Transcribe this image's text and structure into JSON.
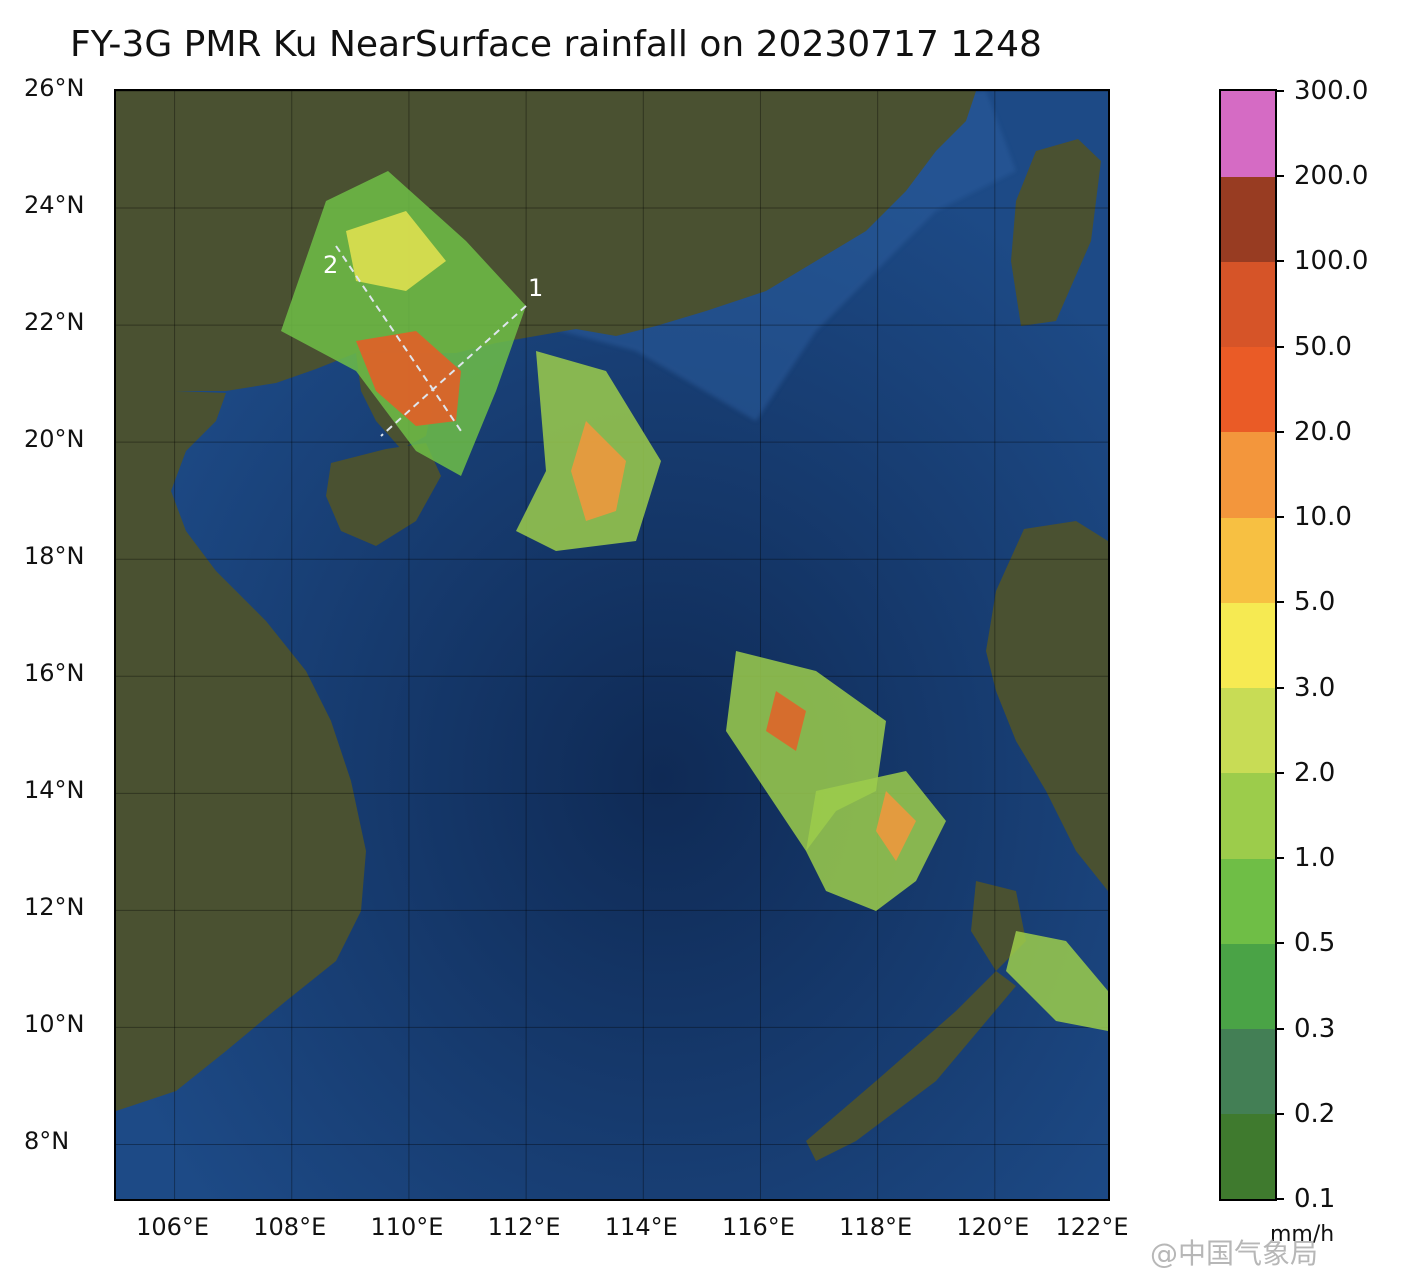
{
  "title": "FY-3G PMR Ku NearSurface rainfall on 20230717 1248",
  "map": {
    "lat_range": [
      7,
      26
    ],
    "lon_range": [
      105,
      122
    ],
    "lat_ticks": [
      {
        "value": 26,
        "label": "26°N"
      },
      {
        "value": 24,
        "label": "24°N"
      },
      {
        "value": 22,
        "label": "22°N"
      },
      {
        "value": 20,
        "label": "20°N"
      },
      {
        "value": 18,
        "label": "18°N"
      },
      {
        "value": 16,
        "label": "16°N"
      },
      {
        "value": 14,
        "label": "14°N"
      },
      {
        "value": 12,
        "label": "12°N"
      },
      {
        "value": 10,
        "label": "10°N"
      },
      {
        "value": 8,
        "label": "8°N"
      }
    ],
    "lon_ticks": [
      {
        "value": 106,
        "label": "106°E"
      },
      {
        "value": 108,
        "label": "108°E"
      },
      {
        "value": 110,
        "label": "110°E"
      },
      {
        "value": 112,
        "label": "112°E"
      },
      {
        "value": 114,
        "label": "114°E"
      },
      {
        "value": 116,
        "label": "116°E"
      },
      {
        "value": 118,
        "label": "118°E"
      },
      {
        "value": 120,
        "label": "120°E"
      },
      {
        "value": 122,
        "label": "122°E"
      }
    ],
    "cross_section_labels": [
      "1",
      "2"
    ],
    "colors": {
      "ocean": "#1d4a86",
      "deep_ocean": "#0f2a55",
      "land": "#4a5131"
    }
  },
  "colorbar": {
    "unit": "mm/h",
    "levels": [
      "0.1",
      "0.2",
      "0.3",
      "0.5",
      "1.0",
      "2.0",
      "3.0",
      "5.0",
      "10.0",
      "20.0",
      "50.0",
      "100.0",
      "200.0",
      "300.0"
    ],
    "colors": [
      "#3f7a2e",
      "#437f55",
      "#4aa346",
      "#6fbe46",
      "#9ccc4b",
      "#c8dc55",
      "#f6ea52",
      "#f7c042",
      "#f3963c",
      "#ea5b26",
      "#d65428",
      "#983c22",
      "#d56bc4",
      "#9e4f91"
    ]
  },
  "watermark": "@中国气象局"
}
